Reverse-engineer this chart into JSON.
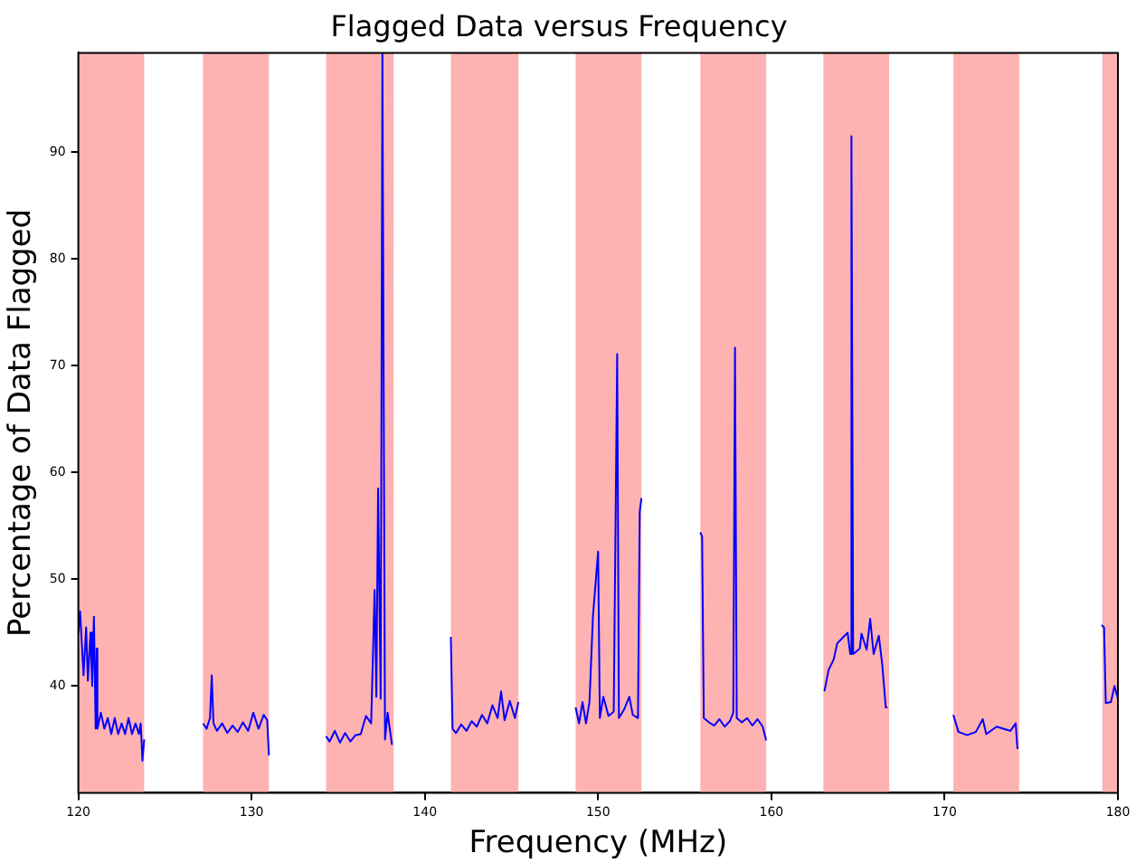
{
  "chart_data": {
    "type": "line",
    "title": "Flagged Data versus Frequency",
    "xlabel": "Frequency (MHz)",
    "ylabel": "Percentage of Data Flagged",
    "xlim": [
      120,
      180
    ],
    "xticks": [
      120,
      130,
      140,
      150,
      160,
      170,
      180
    ],
    "ylim": [
      30,
      99.3
    ],
    "yticks": [
      40,
      50,
      60,
      70,
      80,
      90
    ],
    "marker": "none",
    "line_style": "solid",
    "bands": [
      {
        "axis": "x",
        "from": 120,
        "to": 123.8,
        "color": "#ffb2b2"
      },
      {
        "axis": "x",
        "from": 127.2,
        "to": 131.0,
        "color": "#ffb2b2"
      },
      {
        "axis": "x",
        "from": 134.3,
        "to": 138.2,
        "color": "#ffb2b2"
      },
      {
        "axis": "x",
        "from": 141.5,
        "to": 145.4,
        "color": "#ffb2b2"
      },
      {
        "axis": "x",
        "from": 148.7,
        "to": 152.5,
        "color": "#ffb2b2"
      },
      {
        "axis": "x",
        "from": 155.9,
        "to": 159.7,
        "color": "#ffb2b2"
      },
      {
        "axis": "x",
        "from": 163.0,
        "to": 166.8,
        "color": "#ffb2b2"
      },
      {
        "axis": "x",
        "from": 170.5,
        "to": 174.3,
        "color": "#ffb2b2"
      },
      {
        "axis": "x",
        "from": 179.1,
        "to": 180,
        "color": "#ffb2b2"
      }
    ],
    "series": [
      {
        "color": "#0000ff",
        "x": [
          120.0,
          120.1,
          120.3,
          120.45,
          120.55,
          120.7,
          120.8,
          120.9,
          121.0,
          121.06,
          121.1,
          121.3,
          121.5,
          121.7,
          121.9,
          122.1,
          122.3,
          122.5,
          122.7,
          122.9,
          123.1,
          123.3,
          123.5,
          123.6,
          123.7,
          123.8,
          125.5,
          127.2,
          127.4,
          127.6,
          127.7,
          127.8,
          128.0,
          128.3,
          128.6,
          128.9,
          129.2,
          129.5,
          129.8,
          130.1,
          130.4,
          130.7,
          130.9,
          131.0,
          132.7,
          134.3,
          134.5,
          134.8,
          135.1,
          135.4,
          135.7,
          136.0,
          136.3,
          136.6,
          136.9,
          137.1,
          137.2,
          137.3,
          137.45,
          137.55,
          137.7,
          137.85,
          138.1,
          139.9,
          141.5,
          141.6,
          141.8,
          142.1,
          142.4,
          142.7,
          143.0,
          143.3,
          143.6,
          143.9,
          144.2,
          144.4,
          144.6,
          144.9,
          145.2,
          145.4,
          147.1,
          148.7,
          148.9,
          149.1,
          149.3,
          149.5,
          149.7,
          150.0,
          150.1,
          150.3,
          150.6,
          150.9,
          151.1,
          151.2,
          151.5,
          151.8,
          152.0,
          152.3,
          152.4,
          152.5,
          154.2,
          155.9,
          156.0,
          156.1,
          156.4,
          156.7,
          157.0,
          157.3,
          157.6,
          157.8,
          157.9,
          158.0,
          158.3,
          158.6,
          158.9,
          159.2,
          159.5,
          159.7,
          161.4,
          163.06,
          163.3,
          163.6,
          163.8,
          164.1,
          164.4,
          164.55,
          164.62,
          164.72,
          165.1,
          165.2,
          165.5,
          165.7,
          165.9,
          166.2,
          166.4,
          166.6,
          166.7,
          168.6,
          170.5,
          170.8,
          171.3,
          171.8,
          172.2,
          172.4,
          173.0,
          173.8,
          174.1,
          174.2,
          176.7,
          179.06,
          179.2,
          179.3,
          179.6,
          179.8,
          180.0
        ],
        "values": [
          45,
          47,
          41,
          45.5,
          40.5,
          45,
          40,
          46.5,
          36,
          43.5,
          36,
          37.5,
          36,
          37,
          35.5,
          37,
          35.5,
          36.5,
          35.5,
          37,
          35.5,
          36.5,
          35.5,
          36.5,
          33,
          35,
          null,
          36.5,
          36,
          37,
          41,
          36.5,
          35.8,
          36.5,
          35.6,
          36.3,
          35.7,
          36.6,
          35.8,
          37.5,
          36,
          37.3,
          36.8,
          33.5,
          null,
          35.3,
          34.8,
          35.8,
          34.7,
          35.6,
          34.8,
          35.4,
          35.5,
          37.2,
          36.5,
          49,
          39,
          58.5,
          38.8,
          99.3,
          35,
          37.5,
          34.5,
          null,
          44.6,
          36,
          35.6,
          36.4,
          35.8,
          36.7,
          36.2,
          37.3,
          36.5,
          38.2,
          37,
          39.5,
          36.8,
          38.6,
          37,
          38.5,
          null,
          38,
          36.5,
          38.5,
          36.5,
          38.5,
          46.5,
          52.6,
          37,
          39,
          37.2,
          37.6,
          71.1,
          37,
          37.8,
          39,
          37.3,
          37,
          56.3,
          57.6,
          null,
          54.4,
          54,
          37,
          36.6,
          36.3,
          36.9,
          36.2,
          36.7,
          37.5,
          71.7,
          37,
          36.6,
          37,
          36.3,
          36.9,
          36.2,
          34.9,
          null,
          39.5,
          41.5,
          42.5,
          44,
          44.5,
          45,
          43,
          91.5,
          43,
          43.5,
          44.9,
          43.4,
          46.3,
          43,
          44.7,
          42,
          38,
          38,
          null,
          37.3,
          35.7,
          35.4,
          35.7,
          36.9,
          35.5,
          36.2,
          35.8,
          36.5,
          34.1,
          null,
          45.7,
          45.5,
          38.4,
          38.5,
          40,
          38.8
        ]
      }
    ]
  }
}
